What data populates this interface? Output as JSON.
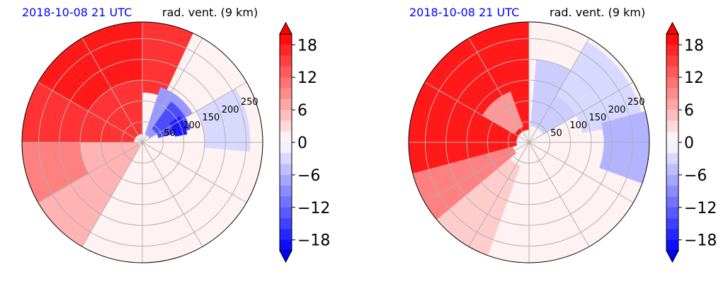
{
  "chart_data": [
    {
      "type": "heatmap",
      "projection": "polar",
      "title_left": "2018-10-08 21 UTC",
      "title_right": "rad. vent. (9 km)",
      "radial_ticks": [
        "50",
        "100",
        "150",
        "200",
        "250"
      ],
      "radial_max": 290,
      "azimuth_gridlines_deg": [
        0,
        30,
        60,
        90,
        120,
        150,
        180,
        210,
        240,
        270,
        300,
        330
      ],
      "field_summary": [
        {
          "region": "north-west (az 270-20)",
          "value": 16
        },
        {
          "region": "center-north (az 20-90, r 20-150)",
          "value": -12
        },
        {
          "region": "west (az 210-270)",
          "value": 6
        },
        {
          "region": "south-east half",
          "value": 1
        }
      ],
      "colorbar": {
        "ticks": [
          "18",
          "12",
          "6",
          "0",
          "−6",
          "−12",
          "−18"
        ],
        "vmin": -20,
        "vmax": 20,
        "step": 2,
        "extend": "both"
      }
    },
    {
      "type": "heatmap",
      "projection": "polar",
      "title_left": "2018-10-08 21 UTC",
      "title_right": "rad. vent. (9 km)",
      "radial_ticks": [
        "50",
        "100",
        "150",
        "200",
        "250"
      ],
      "radial_max": 290,
      "azimuth_gridlines_deg": [
        0,
        30,
        60,
        90,
        120,
        150,
        180,
        210,
        240,
        270,
        300,
        330
      ],
      "field_summary": [
        {
          "region": "west (az 250-350)",
          "value": 18
        },
        {
          "region": "east (az 20-120)",
          "value": -4
        },
        {
          "region": "south",
          "value": 1
        }
      ],
      "colorbar": {
        "ticks": [
          "18",
          "12",
          "6",
          "0",
          "−6",
          "−12",
          "−18"
        ],
        "vmin": -20,
        "vmax": 20,
        "step": 2,
        "extend": "both"
      }
    }
  ],
  "colors": {
    "negative_max": "#0000ff",
    "zero": "#ffffff",
    "positive_max": "#ff0000",
    "grid": "#b0b0b0",
    "title_date": "#0000ff"
  }
}
